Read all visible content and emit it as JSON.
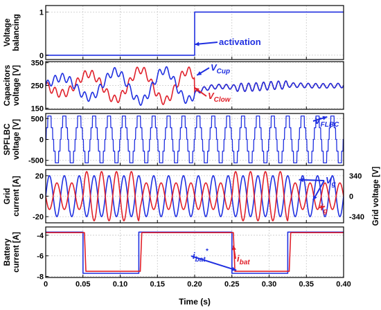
{
  "colors": {
    "blue": "#1f2fe0",
    "red": "#e0202a",
    "grid": "#c8c8c8"
  },
  "xaxis": {
    "label": "Time (s)",
    "ticks": [
      "0",
      "0.05",
      "0.10",
      "0.15",
      "0.20",
      "0.25",
      "0.30",
      "0.35",
      "0.40"
    ],
    "range": [
      0,
      0.4
    ]
  },
  "chart_data": [
    {
      "type": "line",
      "ylabel": [
        "Voltage",
        "balancing"
      ],
      "ylim": [
        -0.1,
        1.15
      ],
      "yticks": [
        {
          "v": 0,
          "label": "0"
        },
        {
          "v": 1,
          "label": "1"
        }
      ],
      "grid": true,
      "series": [
        {
          "color": "blue",
          "kind": "step",
          "points": [
            [
              0,
              0
            ],
            [
              0.2,
              0
            ],
            [
              0.2,
              1
            ],
            [
              0.4,
              1
            ]
          ]
        }
      ],
      "annotations": [
        {
          "id": "activation",
          "text": "activation",
          "color": "blue",
          "arrow_to": [
            0.2,
            0.25
          ]
        }
      ]
    },
    {
      "type": "line",
      "ylabel": [
        "Capacitors",
        "voltage [V]"
      ],
      "ylim": [
        145,
        355
      ],
      "yticks": [
        {
          "v": 150,
          "label": "150"
        },
        {
          "v": 250,
          "label": "250"
        },
        {
          "v": 350,
          "label": "350"
        }
      ],
      "grid": true,
      "series": [
        {
          "color": "red",
          "kind": "cap",
          "sign": -1
        },
        {
          "color": "blue",
          "kind": "cap",
          "sign": 1
        }
      ],
      "annotations": [
        {
          "id": "vcup",
          "text": "V",
          "sub": "Cup",
          "color": "blue",
          "arrow_to": [
            0.203,
            295
          ]
        },
        {
          "id": "vclow",
          "text": "V",
          "sub": "Clow",
          "color": "red",
          "arrow_to": [
            0.2,
            240
          ]
        }
      ]
    },
    {
      "type": "line",
      "ylabel": [
        "SPFLBC",
        "voltage [V]"
      ],
      "ylim": [
        -620,
        620
      ],
      "yticks": [
        {
          "v": 500,
          "label": "500"
        },
        {
          "v": 0,
          "label": "0"
        },
        {
          "v": -500,
          "label": "-500"
        }
      ],
      "grid": true,
      "series": [
        {
          "color": "blue",
          "kind": "multilevel",
          "frequency_hz": 50
        }
      ],
      "annotations": [
        {
          "id": "vflbc",
          "text": "V",
          "sub": "FLBC",
          "color": "blue",
          "arrow_to": [
            0.378,
            540
          ]
        }
      ]
    },
    {
      "type": "line",
      "ylabel": [
        "Grid",
        "current [A]"
      ],
      "ylim": [
        -26,
        26
      ],
      "yticks": [
        {
          "v": 20,
          "label": "20"
        },
        {
          "v": 0,
          "label": "0"
        },
        {
          "v": -20,
          "label": "-20"
        }
      ],
      "y2label": "Grid voltage [V]",
      "y2ticks": [
        {
          "v": 20,
          "label": "340"
        },
        {
          "v": 0,
          "label": "0"
        },
        {
          "v": -20,
          "label": "-340"
        }
      ],
      "grid": true,
      "series": [
        {
          "color": "blue",
          "kind": "sine",
          "name": "Vg",
          "amplitude": 20,
          "frequency_hz": 50
        },
        {
          "color": "red",
          "kind": "sine_env",
          "name": "ig",
          "frequency_hz": 50,
          "phase": 3.1416,
          "envelope": [
            [
              0,
              13
            ],
            [
              0.05,
              13
            ],
            [
              0.052,
              24
            ],
            [
              0.125,
              24
            ],
            [
              0.127,
              13
            ],
            [
              0.25,
              13
            ],
            [
              0.252,
              24
            ],
            [
              0.325,
              24
            ],
            [
              0.327,
              13
            ],
            [
              0.4,
              13
            ]
          ]
        }
      ],
      "annotations": [
        {
          "id": "vg",
          "text": "V",
          "sub": "g",
          "color": "blue",
          "arrow_to": [
            0.34,
            16
          ],
          "arrow_to2": [
            0.359,
            -4
          ]
        },
        {
          "id": "ig",
          "text": "i",
          "sub": "g",
          "color": "red",
          "arrow_to": [
            0.375,
            -10
          ]
        }
      ]
    },
    {
      "type": "line",
      "ylabel": [
        "Battery",
        "current [A]"
      ],
      "ylim": [
        -8.1,
        -3.2
      ],
      "yticks": [
        {
          "v": -4,
          "label": "-4"
        },
        {
          "v": -6,
          "label": "-6"
        },
        {
          "v": -8,
          "label": "-8"
        }
      ],
      "grid": true,
      "series": [
        {
          "color": "blue",
          "kind": "step",
          "name": "ibat*",
          "points": [
            [
              0,
              -3.7
            ],
            [
              0.05,
              -3.7
            ],
            [
              0.05,
              -7.7
            ],
            [
              0.125,
              -7.7
            ],
            [
              0.125,
              -3.7
            ],
            [
              0.25,
              -3.7
            ],
            [
              0.25,
              -7.7
            ],
            [
              0.325,
              -7.7
            ],
            [
              0.325,
              -3.7
            ],
            [
              0.4,
              -3.7
            ]
          ]
        },
        {
          "color": "red",
          "kind": "step_noisy",
          "name": "ibat",
          "points": [
            [
              0,
              -3.75
            ],
            [
              0.052,
              -3.75
            ],
            [
              0.054,
              -7.5
            ],
            [
              0.127,
              -7.5
            ],
            [
              0.129,
              -3.75
            ],
            [
              0.252,
              -3.75
            ],
            [
              0.254,
              -7.5
            ],
            [
              0.327,
              -7.5
            ],
            [
              0.329,
              -3.75
            ],
            [
              0.4,
              -3.75
            ]
          ]
        }
      ],
      "annotations": [
        {
          "id": "ibatref",
          "text": "i",
          "sub": "bat",
          "sup": "*",
          "color": "blue",
          "arrow_to": [
            0.256,
            -7.4
          ]
        },
        {
          "id": "ibat",
          "text": "i",
          "sub": "bat",
          "color": "red",
          "arrow_to": [
            0.252,
            -5.0
          ]
        }
      ]
    }
  ]
}
